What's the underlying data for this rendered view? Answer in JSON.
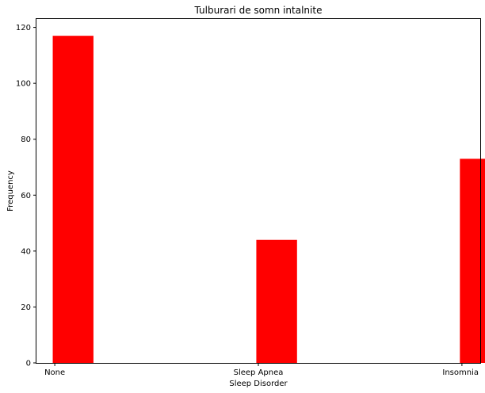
{
  "chart_data": {
    "type": "bar",
    "title": "Tulburari de somn intalnite",
    "xlabel": "Sleep Disorder",
    "ylabel": "Frequency",
    "categories": [
      "None",
      "Sleep Apnea",
      "Insomnia"
    ],
    "values": [
      117,
      44,
      73
    ],
    "ylim": [
      0,
      123
    ],
    "yticks": [
      0,
      20,
      40,
      60,
      80,
      100,
      120
    ],
    "bar_color": "#ff0000",
    "grid": false,
    "legend": "none"
  }
}
